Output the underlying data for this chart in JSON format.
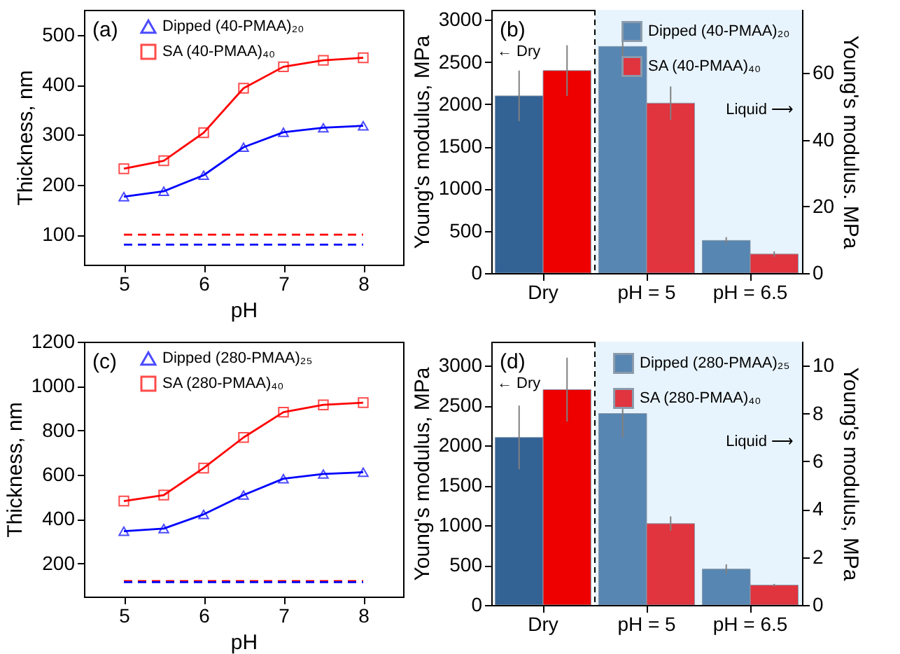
{
  "chart_data": [
    {
      "type": "line",
      "xlabel": "pH",
      "ylabel": "Thickness, nm",
      "x": [
        5,
        5.5,
        6,
        6.5,
        7,
        7.5,
        8
      ],
      "xlim": [
        4.5,
        8.5
      ],
      "xticks": [
        5,
        6,
        7,
        8
      ],
      "ylim": [
        40,
        550
      ],
      "yticks": [
        100,
        200,
        300,
        400,
        500
      ],
      "legend": "top left",
      "annotations": [
        "(a)"
      ],
      "series": [
        {
          "name": "Dipped (40-PMAA)₂₀",
          "color": "#0000ff",
          "marker": "triangle",
          "values": [
            176,
            187,
            219,
            275,
            305,
            314,
            318
          ]
        },
        {
          "name": "SA (40-PMAA)₄₀",
          "color": "#ff0000",
          "marker": "square",
          "values": [
            232,
            248,
            304,
            393,
            436,
            449,
            454
          ]
        },
        {
          "color": "#ff0000",
          "marker": "none",
          "line_style": "dashed",
          "values": [
            100,
            100,
            100,
            100,
            100,
            100,
            100
          ]
        },
        {
          "color": "#0000ff",
          "marker": "none",
          "line_style": "dashed",
          "values": [
            80,
            80,
            80,
            80,
            80,
            80,
            80
          ]
        }
      ]
    },
    {
      "type": "bar",
      "ylabel": "Young's modulus, MPa",
      "y2label": "Young's modulus. MPa",
      "categories": [
        "Dry",
        "pH = 5",
        "pH = 6.5"
      ],
      "ylim": [
        0,
        3120
      ],
      "yticks": [
        0,
        500,
        1000,
        1500,
        2000,
        2500,
        3000
      ],
      "y2lim": [
        0,
        79
      ],
      "y2ticks": [
        0,
        20,
        40,
        60
      ],
      "legend": "top right",
      "bands": [
        {
          "axis": "x",
          "from": "pH = 5",
          "to": "pH = 6.5",
          "color": "#e8f4fd"
        }
      ],
      "annotations": [
        "(b)",
        "← Dry",
        "Liquid ⟶"
      ],
      "series": [
        {
          "color": "#336295",
          "values": [
            2100,
            null,
            null
          ],
          "errors": [
            300,
            null,
            null
          ]
        },
        {
          "color": "#ee0000",
          "values": [
            2400,
            null,
            null
          ],
          "errors": [
            300,
            null,
            null
          ]
        },
        {
          "name": "Dipped (40-PMAA)₂₀",
          "color": "#5886b2",
          "axis": "y2",
          "values": [
            null,
            68,
            9.8
          ],
          "errors": [
            null,
            3,
            1
          ]
        },
        {
          "name": "SA (40-PMAA)₄₀",
          "color": "#e0343f",
          "axis": "y2",
          "values": [
            null,
            51,
            5.7
          ],
          "errors": [
            null,
            5,
            0.8
          ]
        }
      ]
    },
    {
      "type": "line",
      "xlabel": "pH",
      "ylabel": "Thickness, nm",
      "x": [
        5,
        5.5,
        6,
        6.5,
        7,
        7.5,
        8
      ],
      "xlim": [
        4.5,
        8.5
      ],
      "xticks": [
        5,
        6,
        7,
        8
      ],
      "ylim": [
        50,
        1200
      ],
      "yticks": [
        200,
        400,
        600,
        800,
        1000,
        1200
      ],
      "legend": "top left",
      "annotations": [
        "(c)"
      ],
      "series": [
        {
          "name": "Dipped (280-PMAA)₂₅",
          "color": "#0000ff",
          "marker": "triangle",
          "values": [
            345,
            357,
            421,
            508,
            582,
            603,
            611
          ]
        },
        {
          "name": "SA (280-PMAA)₄₀",
          "color": "#ff0000",
          "marker": "square",
          "values": [
            481,
            508,
            630,
            768,
            882,
            915,
            925
          ]
        },
        {
          "color": "#ff0000",
          "marker": "none",
          "line_style": "dashed",
          "values": [
            120,
            120,
            120,
            120,
            120,
            120,
            120
          ]
        },
        {
          "color": "#0000ff",
          "marker": "none",
          "line_style": "dashed",
          "values": [
            115,
            115,
            115,
            115,
            115,
            115,
            115
          ]
        }
      ]
    },
    {
      "type": "bar",
      "ylabel": "Young's modulus, MPa",
      "y2label": "Young's modulus, MPa",
      "categories": [
        "Dry",
        "pH = 5",
        "pH = 6.5"
      ],
      "ylim": [
        0,
        3300
      ],
      "yticks": [
        0,
        500,
        1000,
        1500,
        2000,
        2500,
        3000
      ],
      "y2lim": [
        0,
        11
      ],
      "y2ticks": [
        0,
        2,
        4,
        6,
        8,
        10
      ],
      "legend": "top right",
      "bands": [
        {
          "axis": "x",
          "from": "pH = 5",
          "to": "pH = 6.5",
          "color": "#e8f4fd"
        }
      ],
      "annotations": [
        "(d)",
        "← Dry",
        "Liquid ⟶"
      ],
      "series": [
        {
          "color": "#336295",
          "values": [
            2100,
            null,
            null
          ],
          "errors": [
            400,
            null,
            null
          ]
        },
        {
          "color": "#ee0000",
          "values": [
            2700,
            null,
            null
          ],
          "errors": [
            400,
            null,
            null
          ]
        },
        {
          "name": "Dipped (280-PMAA)₂₅",
          "color": "#5886b2",
          "axis": "y2",
          "values": [
            null,
            8,
            1.5
          ],
          "errors": [
            null,
            1,
            0.2
          ]
        },
        {
          "name": "SA (280-PMAA)₄₀",
          "color": "#e0343f",
          "axis": "y2",
          "values": [
            null,
            3.4,
            0.83
          ],
          "errors": [
            null,
            0.3,
            0.05
          ]
        }
      ]
    }
  ]
}
